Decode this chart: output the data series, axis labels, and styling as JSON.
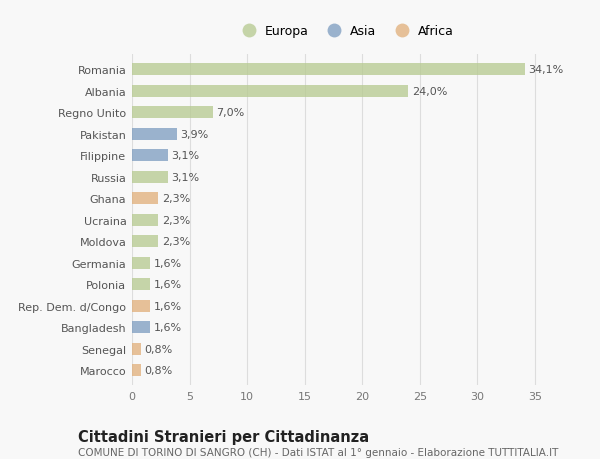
{
  "countries": [
    "Romania",
    "Albania",
    "Regno Unito",
    "Pakistan",
    "Filippine",
    "Russia",
    "Ghana",
    "Ucraina",
    "Moldova",
    "Germania",
    "Polonia",
    "Rep. Dem. d/Congo",
    "Bangladesh",
    "Senegal",
    "Marocco"
  ],
  "values": [
    34.1,
    24.0,
    7.0,
    3.9,
    3.1,
    3.1,
    2.3,
    2.3,
    2.3,
    1.6,
    1.6,
    1.6,
    1.6,
    0.8,
    0.8
  ],
  "labels": [
    "34,1%",
    "24,0%",
    "7,0%",
    "3,9%",
    "3,1%",
    "3,1%",
    "2,3%",
    "2,3%",
    "2,3%",
    "1,6%",
    "1,6%",
    "1,6%",
    "1,6%",
    "0,8%",
    "0,8%"
  ],
  "continents": [
    "Europa",
    "Europa",
    "Europa",
    "Asia",
    "Asia",
    "Europa",
    "Africa",
    "Europa",
    "Europa",
    "Europa",
    "Europa",
    "Africa",
    "Asia",
    "Africa",
    "Africa"
  ],
  "continent_colors": {
    "Europa": "#b5c98e",
    "Asia": "#7b9bbf",
    "Africa": "#e0ae78"
  },
  "legend_labels": [
    "Europa",
    "Asia",
    "Africa"
  ],
  "legend_colors": [
    "#b5c98e",
    "#7b9bbf",
    "#e0ae78"
  ],
  "xlim": [
    0,
    37
  ],
  "xticks": [
    0,
    5,
    10,
    15,
    20,
    25,
    30,
    35
  ],
  "title": "Cittadini Stranieri per Cittadinanza",
  "subtitle": "COMUNE DI TORINO DI SANGRO (CH) - Dati ISTAT al 1° gennaio - Elaborazione TUTTITALIA.IT",
  "bg_color": "#f8f8f8",
  "plot_bg_color": "#f8f8f8",
  "grid_color": "#dddddd",
  "bar_height": 0.55,
  "label_fontsize": 8,
  "tick_fontsize": 8,
  "title_fontsize": 10.5,
  "subtitle_fontsize": 7.5,
  "bar_alpha": 0.75
}
